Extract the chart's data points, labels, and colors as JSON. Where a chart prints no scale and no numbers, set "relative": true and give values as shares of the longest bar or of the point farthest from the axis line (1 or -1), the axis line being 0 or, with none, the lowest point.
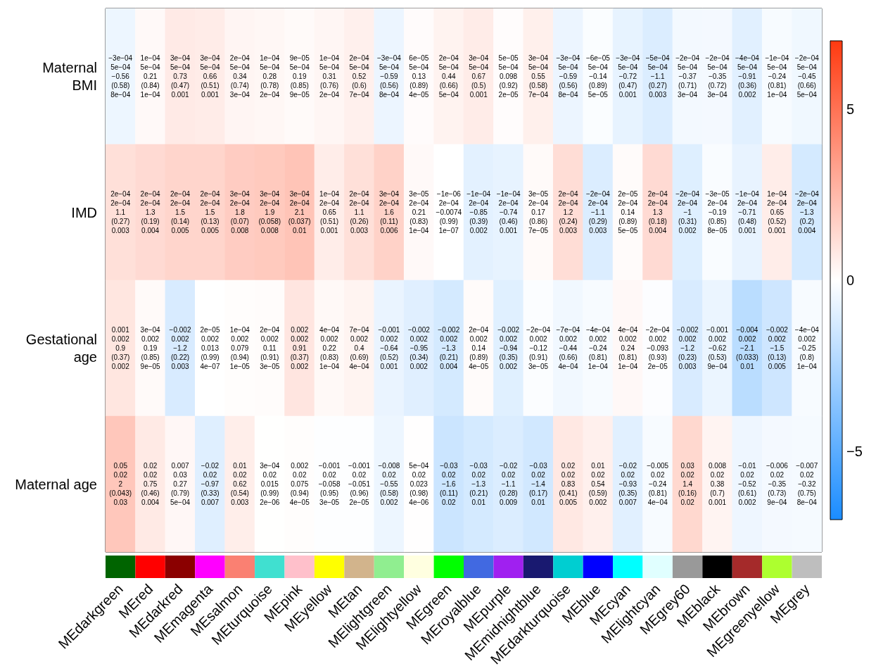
{
  "chart_data": [
    {
      "type": "heatmap",
      "categories": [
        null,
        null,
        null,
        null,
        null,
        null,
        null,
        null,
        null,
        null,
        null,
        null,
        null,
        null,
        null,
        null,
        null,
        null,
        null,
        null,
        null,
        null,
        null,
        null
      ],
      "tick_labels": "y",
      "y_categories": [
        "Maternal\nBMI",
        "IMD",
        "Gestational\nage",
        "Maternal age"
      ],
      "cells": [
        [
          -0.56,
          0.21,
          0.73,
          0.66,
          0.34,
          0.28,
          0.19,
          0.31,
          0.52,
          -0.59,
          0.13,
          0.44,
          0.67,
          0.098,
          0.55,
          -0.59,
          -0.14,
          -0.72,
          -1.1,
          -0.37,
          -0.35,
          -0.91,
          -0.24,
          -0.45
        ],
        [
          1.1,
          1.3,
          1.5,
          1.5,
          1.8,
          1.9,
          2.1,
          0.65,
          1.1,
          1.6,
          0.21,
          -0.0074,
          -0.85,
          -0.74,
          0.17,
          1.2,
          -1.1,
          0.14,
          1.3,
          -1,
          -0.19,
          -0.71,
          0.65,
          -1.3
        ],
        [
          0.9,
          0.19,
          -1.2,
          0.013,
          0.079,
          0.11,
          0.91,
          0.22,
          0.4,
          -0.64,
          -0.95,
          -1.3,
          0.14,
          -0.94,
          -0.12,
          -0.44,
          -0.24,
          0.24,
          -0.093,
          -1.2,
          -0.62,
          -2.1,
          -1.5,
          -0.25
        ],
        [
          2,
          0.75,
          0.27,
          -0.97,
          0.62,
          0.015,
          0.075,
          -0.058,
          -0.051,
          -0.55,
          0.023,
          -1.6,
          -1.3,
          -1.1,
          -1.4,
          0.83,
          0.54,
          -0.93,
          -0.24,
          1.4,
          0.38,
          -0.52,
          -0.35,
          -0.32
        ]
      ],
      "cell_labels": [
        [
          "−3e−04\n5e−04\n−0.56\n(0.58)\n8e−04",
          "1e−04\n5e−04\n0.21\n(0.84)\n1e−04",
          "3e−04\n5e−04\n0.73\n(0.47)\n0.001",
          "3e−04\n5e−04\n0.66\n(0.51)\n0.001",
          "2e−04\n5e−04\n0.34\n(0.74)\n3e−04",
          "1e−04\n5e−04\n0.28\n(0.78)\n2e−04",
          "9e−05\n5e−04\n0.19\n(0.85)\n9e−05",
          "1e−04\n5e−04\n0.31\n(0.76)\n2e−04",
          "2e−04\n5e−04\n0.52\n(0.6)\n7e−04",
          "−3e−04\n5e−04\n−0.59\n(0.56)\n8e−04",
          "6e−05\n5e−04\n0.13\n(0.89)\n4e−05",
          "2e−04\n5e−04\n0.44\n(0.66)\n5e−04",
          "3e−04\n5e−04\n0.67\n(0.5)\n0.001",
          "5e−05\n5e−04\n0.098\n(0.92)\n2e−05",
          "3e−04\n5e−04\n0.55\n(0.58)\n7e−04",
          "−3e−04\n5e−04\n−0.59\n(0.56)\n8e−04",
          "−6e−05\n5e−04\n−0.14\n(0.89)\n5e−05",
          "−3e−04\n5e−04\n−0.72\n(0.47)\n0.001",
          "−5e−04\n5e−04\n−1.1\n(0.27)\n0.003",
          "−2e−04\n5e−04\n−0.37\n(0.71)\n3e−04",
          "−2e−04\n5e−04\n−0.35\n(0.72)\n3e−04",
          "−4e−04\n5e−04\n−0.91\n(0.36)\n0.002",
          "−1e−04\n5e−04\n−0.24\n(0.81)\n1e−04",
          "−2e−04\n5e−04\n−0.45\n(0.66)\n5e−04"
        ],
        [
          "2e−04\n2e−04\n1.1\n(0.27)\n0.003",
          "2e−04\n2e−04\n1.3\n(0.19)\n0.004",
          "2e−04\n2e−04\n1.5\n(0.14)\n0.005",
          "2e−04\n2e−04\n1.5\n(0.13)\n0.005",
          "3e−04\n2e−04\n1.8\n(0.07)\n0.008",
          "3e−04\n2e−04\n1.9\n(0.058)\n0.008",
          "3e−04\n2e−04\n2.1\n(0.037)\n0.01",
          "1e−04\n2e−04\n0.65\n(0.51)\n0.001",
          "2e−04\n2e−04\n1.1\n(0.26)\n0.003",
          "3e−04\n2e−04\n1.6\n(0.11)\n0.006",
          "3e−05\n2e−04\n0.21\n(0.83)\n1e−04",
          "−1e−06\n2e−04\n−0.0074\n(0.99)\n1e−07",
          "−1e−04\n2e−04\n−0.85\n(0.39)\n0.002",
          "−1e−04\n2e−04\n−0.74\n(0.46)\n0.001",
          "3e−05\n2e−04\n0.17\n(0.86)\n7e−05",
          "2e−04\n2e−04\n1.2\n(0.24)\n0.003",
          "−2e−04\n2e−04\n−1.1\n(0.29)\n0.003",
          "2e−05\n2e−04\n0.14\n(0.89)\n5e−05",
          "2e−04\n2e−04\n1.3\n(0.18)\n0.004",
          "−2e−04\n2e−04\n−1\n(0.31)\n0.002",
          "−3e−05\n2e−04\n−0.19\n(0.85)\n8e−05",
          "−1e−04\n2e−04\n−0.71\n(0.48)\n0.001",
          "1e−04\n2e−04\n0.65\n(0.52)\n0.001",
          "−2e−04\n2e−04\n−1.3\n(0.2)\n0.004"
        ],
        [
          "0.001\n0.002\n0.9\n(0.37)\n0.002",
          "3e−04\n0.002\n0.19\n(0.85)\n9e−05",
          "−0.002\n0.002\n−1.2\n(0.22)\n0.003",
          "2e−05\n0.002\n0.013\n(0.99)\n4e−07",
          "1e−04\n0.002\n0.079\n(0.94)\n1e−05",
          "2e−04\n0.002\n0.11\n(0.91)\n3e−05",
          "0.002\n0.002\n0.91\n(0.37)\n0.002",
          "4e−04\n0.002\n0.22\n(0.83)\n1e−04",
          "7e−04\n0.002\n0.4\n(0.69)\n4e−04",
          "−0.001\n0.002\n−0.64\n(0.52)\n0.001",
          "−0.002\n0.002\n−0.95\n(0.34)\n0.002",
          "−0.002\n0.002\n−1.3\n(0.21)\n0.004",
          "2e−04\n0.002\n0.14\n(0.89)\n4e−05",
          "−0.002\n0.002\n−0.94\n(0.35)\n0.002",
          "−2e−04\n0.002\n−0.12\n(0.91)\n3e−05",
          "−7e−04\n0.002\n−0.44\n(0.66)\n4e−04",
          "−4e−04\n0.002\n−0.24\n(0.81)\n1e−04",
          "4e−04\n0.002\n0.24\n(0.81)\n1e−04",
          "−2e−04\n0.002\n−0.093\n(0.93)\n2e−05",
          "−0.002\n0.002\n−1.2\n(0.23)\n0.003",
          "−0.001\n0.002\n−0.62\n(0.53)\n9e−04",
          "−0.004\n0.002\n−2.1\n(0.033)\n0.01",
          "−0.002\n0.002\n−1.5\n(0.13)\n0.005",
          "−4e−04\n0.002\n−0.25\n(0.8)\n1e−04"
        ],
        [
          "0.05\n0.02\n2\n(0.043)\n0.03",
          "0.02\n0.02\n0.75\n(0.46)\n0.004",
          "0.007\n0.03\n0.27\n(0.79)\n5e−04",
          "−0.02\n0.02\n−0.97\n(0.33)\n0.007",
          "0.01\n0.02\n0.62\n(0.54)\n0.003",
          "3e−04\n0.02\n0.015\n(0.99)\n2e−06",
          "0.002\n0.02\n0.075\n(0.94)\n4e−05",
          "−0.001\n0.02\n−0.058\n(0.95)\n3e−05",
          "−0.001\n0.02\n−0.051\n(0.96)\n2e−05",
          "−0.008\n0.02\n−0.55\n(0.58)\n0.002",
          "5e−04\n0.02\n0.023\n(0.98)\n4e−06",
          "−0.03\n0.02\n−1.6\n(0.11)\n0.02",
          "−0.03\n0.02\n−1.3\n(0.21)\n0.01",
          "−0.02\n0.02\n−1.1\n(0.28)\n0.009",
          "−0.03\n0.02\n−1.4\n(0.17)\n0.01",
          "0.02\n0.02\n0.83\n(0.41)\n0.005",
          "0.01\n0.02\n0.54\n(0.59)\n0.002",
          "−0.02\n0.02\n−0.93\n(0.35)\n0.007",
          "−0.005\n0.02\n−0.24\n(0.81)\n4e−04",
          "0.03\n0.02\n1.4\n(0.16)\n0.02",
          "0.008\n0.02\n0.38\n(0.7)\n0.001",
          "−0.01\n0.02\n−0.52\n(0.61)\n0.002",
          "−0.006\n0.02\n−0.35\n(0.73)\n9e−04",
          "−0.007\n0.02\n−0.32\n(0.75)\n8e−04"
        ]
      ],
      "clim": [
        -7,
        7
      ],
      "cticks": [
        -5,
        0,
        5
      ]
    },
    {
      "type": "bar",
      "relative": true,
      "categories": [
        "MEdarkgreen",
        "MEred",
        "MEdarkred",
        "MEmagenta",
        "MEsalmon",
        "MEturquoise",
        "MEpink",
        "MEyellow",
        "MEtan",
        "MElightgreen",
        "MElightyellow",
        "MEgreen",
        "MEroyalblue",
        "MEpurple",
        "MEmidnightblue",
        "MEdarkturquoise",
        "MEblue",
        "MEcyan",
        "MElightcyan",
        "MEgrey60",
        "MEblack",
        "MEbrown",
        "MEgreenyellow",
        "MEgrey"
      ],
      "values": [
        1,
        1,
        1,
        1,
        1,
        1,
        1,
        1,
        1,
        1,
        1,
        1,
        1,
        1,
        1,
        1,
        1,
        1,
        1,
        1,
        1,
        1,
        1,
        1
      ],
      "colors": [
        "#006400",
        "#ff0000",
        "#8b0000",
        "#ff00ff",
        "#fa8072",
        "#40e0d0",
        "#ffc0cb",
        "#ffff00",
        "#d2b48c",
        "#90ee90",
        "#ffffe0",
        "#00ff00",
        "#4169e1",
        "#a020f0",
        "#191970",
        "#00ced1",
        "#0000ff",
        "#00ffff",
        "#e0ffff",
        "#999999",
        "#000000",
        "#a52a2a",
        "#adff2f",
        "#bebebe"
      ]
    }
  ]
}
